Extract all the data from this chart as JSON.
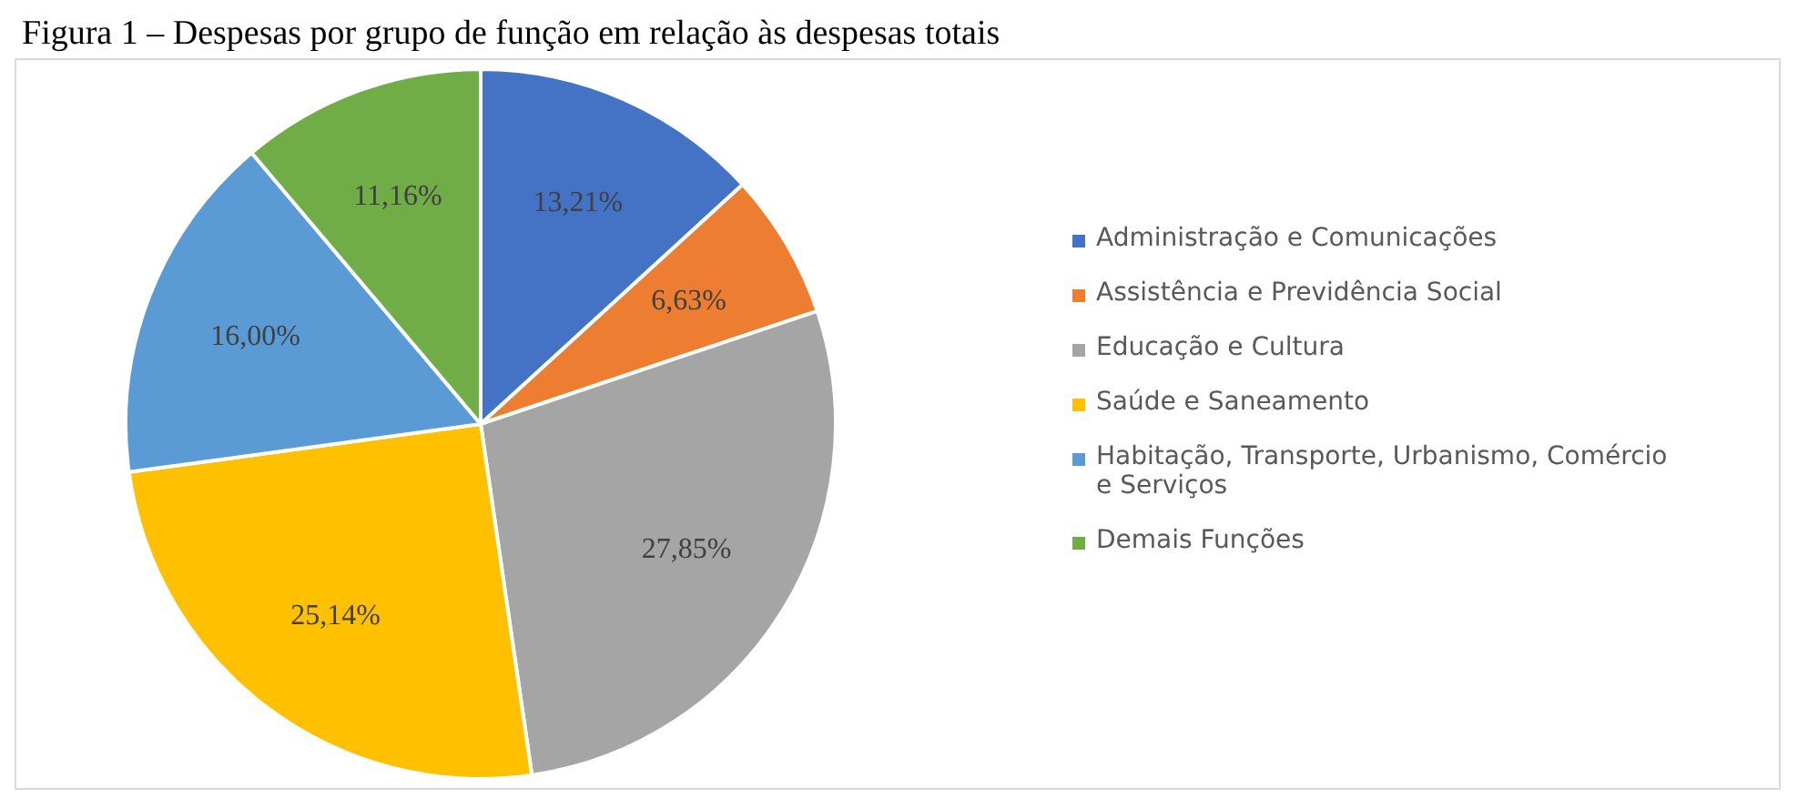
{
  "chart_data": {
    "type": "pie",
    "title": "Figura 1 – Despesas por grupo de função em relação às despesas totais",
    "categories": [
      "Administração e Comunicações",
      "Assistência e Previdência Social",
      "Educação e Cultura",
      "Saúde e Saneamento",
      "Habitação, Transporte, Urbanismo, Comércio e Serviços",
      "Demais Funções"
    ],
    "values": [
      13.21,
      6.63,
      27.85,
      25.14,
      16.0,
      11.16
    ],
    "colors": [
      "#4472c4",
      "#ed7d31",
      "#a5a5a5",
      "#ffc000",
      "#5b9bd5",
      "#70ad47"
    ],
    "value_labels": [
      "13,21%",
      "6,63%",
      "27,85%",
      "25,14%",
      "16,00%",
      "11,16%"
    ],
    "legend": "right"
  }
}
